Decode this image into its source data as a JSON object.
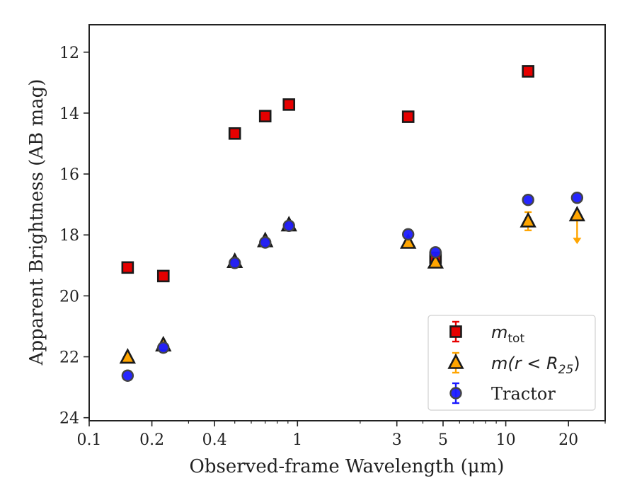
{
  "chart_data": {
    "type": "scatter",
    "xlabel": "Observed-frame Wavelength (μm)",
    "ylabel": "Apparent Brightness (AB mag)",
    "x_scale": "log",
    "xlim": [
      0.1,
      30
    ],
    "ylim": [
      24.1,
      11.1
    ],
    "y_inverted": true,
    "x_ticks": [
      0.1,
      0.2,
      0.4,
      1,
      3,
      5,
      10,
      20
    ],
    "x_tick_labels": [
      "0.1",
      "0.2",
      "0.4",
      "1",
      "3",
      "5",
      "10",
      "20"
    ],
    "y_ticks": [
      12,
      14,
      16,
      18,
      20,
      22,
      24
    ],
    "y_tick_labels": [
      "12",
      "14",
      "16",
      "18",
      "20",
      "22",
      "24"
    ],
    "grid": false,
    "legend_position": "lower-right",
    "series": [
      {
        "name": "m_tot",
        "legend_main": "m",
        "legend_sub": "tot",
        "marker": "square",
        "color": "#e60000",
        "edge": "#1a1a1a",
        "points": [
          {
            "x": 0.153,
            "y": 19.07
          },
          {
            "x": 0.227,
            "y": 19.35
          },
          {
            "x": 0.5,
            "y": 14.67
          },
          {
            "x": 0.7,
            "y": 14.1
          },
          {
            "x": 0.91,
            "y": 13.72
          },
          {
            "x": 3.4,
            "y": 14.12
          },
          {
            "x": 4.6,
            "y": 18.75
          },
          {
            "x": 12.8,
            "y": 12.63
          }
        ]
      },
      {
        "name": "m(r < R25)",
        "legend_main": "m(r < R",
        "legend_sub": "25",
        "legend_tail": ")",
        "marker": "triangle",
        "color": "#ffa500",
        "edge": "#1a1a1a",
        "points": [
          {
            "x": 0.153,
            "y": 22.02
          },
          {
            "x": 0.227,
            "y": 21.62
          },
          {
            "x": 0.5,
            "y": 18.88
          },
          {
            "x": 0.7,
            "y": 18.2
          },
          {
            "x": 0.91,
            "y": 17.68
          },
          {
            "x": 3.4,
            "y": 18.25
          },
          {
            "x": 4.6,
            "y": 18.9
          },
          {
            "x": 12.8,
            "y": 17.55,
            "err": 0.3
          },
          {
            "x": 22.0,
            "y": 17.35,
            "upper_limit": true
          }
        ]
      },
      {
        "name": "Tractor",
        "legend_main": "Tractor",
        "marker": "circle",
        "color": "#1a1aff",
        "edge": "#444444",
        "points": [
          {
            "x": 0.153,
            "y": 22.62
          },
          {
            "x": 0.227,
            "y": 21.7
          },
          {
            "x": 0.5,
            "y": 18.92
          },
          {
            "x": 0.7,
            "y": 18.25
          },
          {
            "x": 0.91,
            "y": 17.7
          },
          {
            "x": 3.4,
            "y": 17.98
          },
          {
            "x": 4.6,
            "y": 18.57
          },
          {
            "x": 12.8,
            "y": 16.85
          },
          {
            "x": 22.0,
            "y": 16.78
          }
        ]
      }
    ]
  }
}
